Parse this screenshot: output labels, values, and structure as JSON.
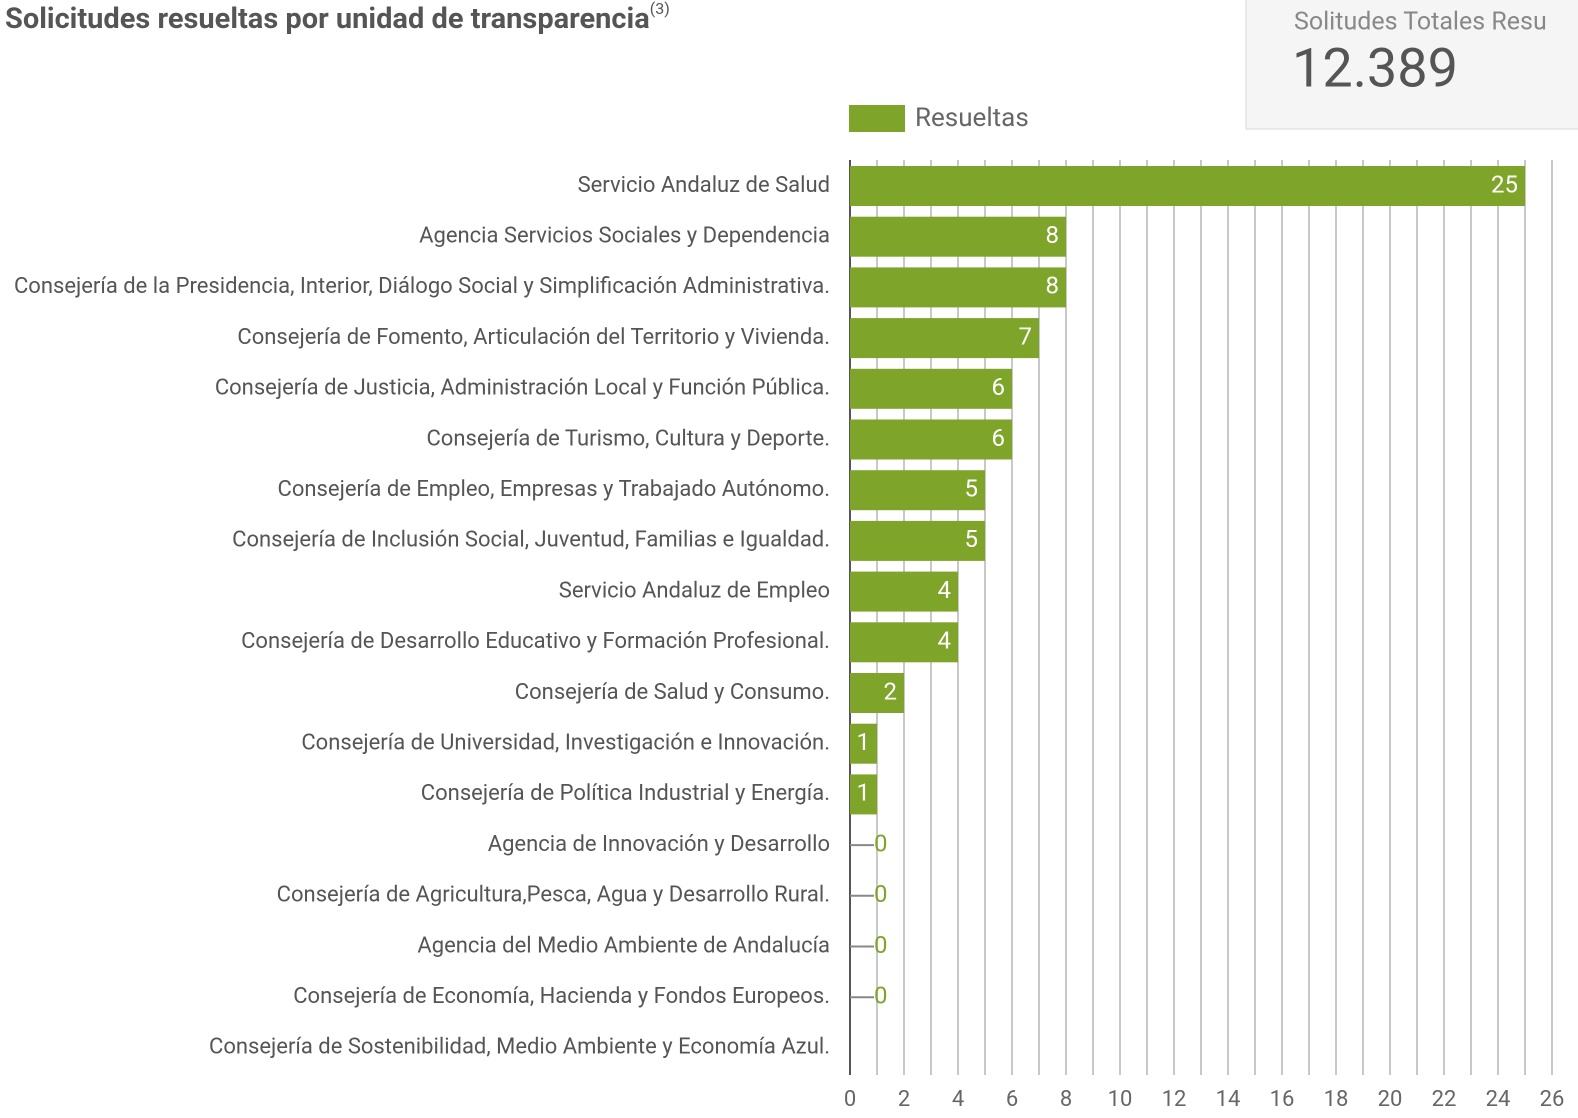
{
  "title": "Solicitudes resueltas por unidad de transparencia",
  "title_note": "(3)",
  "card": {
    "label": "Solitudes Totales Resu",
    "value": "12.389"
  },
  "chart_data": {
    "type": "barh",
    "categories": [
      "Servicio Andaluz de Salud",
      "Agencia Servicios Sociales y Dependencia",
      "Consejería de la Presidencia, Interior, Diálogo Social y Simplificación Administrativa.",
      "Consejería de Fomento, Articulación del Territorio y Vivienda.",
      "Consejería de Justicia, Administración Local y Función Pública.",
      "Consejería de Turismo, Cultura y Deporte.",
      "Consejería de Empleo, Empresas y Trabajado Autónomo.",
      "Consejería de Inclusión Social, Juventud, Familias e Igualdad.",
      "Servicio Andaluz de Empleo",
      "Consejería de Desarrollo Educativo y Formación Profesional.",
      "Consejería de Salud y Consumo.",
      "Consejería de Universidad, Investigación e Innovación.",
      "Consejería de Política Industrial y Energía.",
      "Agencia de Innovación y Desarrollo",
      "Consejería de Agricultura,Pesca, Agua y Desarrollo Rural.",
      "Agencia del Medio Ambiente de Andalucía",
      "Consejería de Economía, Hacienda y Fondos Europeos.",
      "Consejería de Sostenibilidad, Medio Ambiente y Economía Azul."
    ],
    "series": [
      {
        "name": "Resueltas",
        "color": "#7ea52a",
        "values": [
          25,
          8,
          8,
          7,
          6,
          6,
          5,
          5,
          4,
          4,
          2,
          1,
          1,
          0,
          0,
          0,
          0,
          null
        ]
      }
    ],
    "xlim": [
      0,
      26
    ],
    "xticks": [
      0,
      2,
      4,
      6,
      8,
      10,
      12,
      14,
      16,
      18,
      20,
      22,
      24,
      26
    ],
    "minor_xticks": [
      1,
      3,
      5,
      7,
      9,
      11,
      13,
      15,
      17,
      19,
      21,
      23,
      25
    ],
    "grid": true,
    "legend": "top"
  }
}
